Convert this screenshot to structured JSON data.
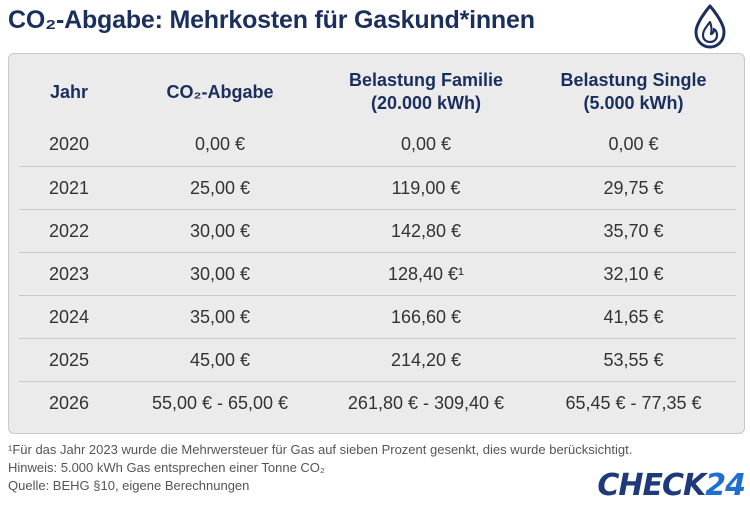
{
  "title": "CO₂-Abgabe: Mehrkosten für Gaskund*innen",
  "icons": {
    "top_right": "gas-flame-drop-icon"
  },
  "colors": {
    "title": "#1b2f5e",
    "card_bg": "#ebebeb",
    "logo_dark": "#1f3a7a",
    "logo_accent": "#1f6fd0"
  },
  "table": {
    "headers": {
      "year": "Jahr",
      "levy": "CO₂-Abgabe",
      "family_line1": "Belastung Familie",
      "family_line2": "(20.000 kWh)",
      "single_line1": "Belastung Single",
      "single_line2": "(5.000 kWh)"
    },
    "rows": [
      {
        "year": "2020",
        "levy": "0,00 €",
        "family": "0,00 €",
        "single": "0,00 €"
      },
      {
        "year": "2021",
        "levy": "25,00 €",
        "family": "119,00 €",
        "single": "29,75 €"
      },
      {
        "year": "2022",
        "levy": "30,00 €",
        "family": "142,80 €",
        "single": "35,70 €"
      },
      {
        "year": "2023",
        "levy": "30,00 €",
        "family": "128,40 €¹",
        "single": "32,10 €"
      },
      {
        "year": "2024",
        "levy": "35,00 €",
        "family": "166,60 €",
        "single": "41,65 €"
      },
      {
        "year": "2025",
        "levy": "45,00 €",
        "family": "214,20 €",
        "single": "53,55 €"
      },
      {
        "year": "2026",
        "levy": "55,00 € - 65,00 €",
        "family": "261,80 € - 309,40 €",
        "single": "65,45 € - 77,35 €"
      }
    ]
  },
  "footnotes": {
    "note1": "¹Für das Jahr 2023 wurde die Mehrwersteuer für Gas auf sieben Prozent gesenkt, dies wurde berücksichtigt.",
    "hint": "Hinweis: 5.000 kWh Gas entsprechen einer Tonne CO₂",
    "source": "Quelle: BEHG §10, eigene Berechnungen"
  },
  "logo": {
    "word": "CHECK",
    "number": "24"
  }
}
